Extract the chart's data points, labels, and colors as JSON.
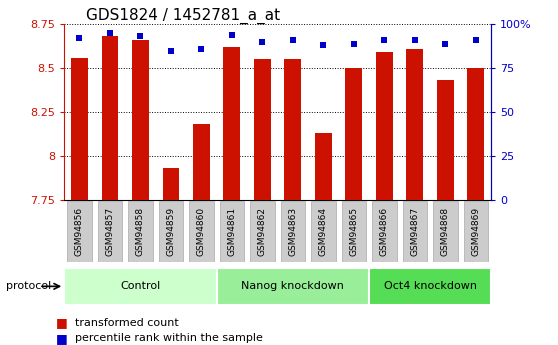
{
  "title": "GDS1824 / 1452781_a_at",
  "samples": [
    "GSM94856",
    "GSM94857",
    "GSM94858",
    "GSM94859",
    "GSM94860",
    "GSM94861",
    "GSM94862",
    "GSM94863",
    "GSM94864",
    "GSM94865",
    "GSM94866",
    "GSM94867",
    "GSM94868",
    "GSM94869"
  ],
  "bar_values": [
    8.56,
    8.68,
    8.66,
    7.93,
    8.18,
    8.62,
    8.55,
    8.55,
    8.13,
    8.5,
    8.59,
    8.61,
    8.43,
    8.5
  ],
  "percentile_values": [
    92,
    95,
    93,
    85,
    86,
    94,
    90,
    91,
    88,
    89,
    91,
    91,
    89,
    91
  ],
  "groups": [
    {
      "label": "Control",
      "start": 0,
      "end": 5,
      "color": "#ccffcc"
    },
    {
      "label": "Nanog knockdown",
      "start": 5,
      "end": 10,
      "color": "#99ee99"
    },
    {
      "label": "Oct4 knockdown",
      "start": 10,
      "end": 14,
      "color": "#55dd55"
    }
  ],
  "bar_color": "#cc1100",
  "percentile_color": "#0000cc",
  "ylim_left": [
    7.75,
    8.75
  ],
  "ylim_right": [
    0,
    100
  ],
  "yticks_left": [
    7.75,
    8.0,
    8.25,
    8.5,
    8.75
  ],
  "ytick_labels_left": [
    "7.75",
    "8",
    "8.25",
    "8.5",
    "8.75"
  ],
  "yticks_right": [
    0,
    25,
    50,
    75,
    100
  ],
  "ytick_labels_right": [
    "0",
    "25",
    "50",
    "75",
    "100%"
  ],
  "bar_width": 0.55,
  "ybase": 7.75,
  "title_fontsize": 11,
  "tick_label_color_left": "#cc1100",
  "tick_label_color_right": "#0000cc",
  "legend_items": [
    {
      "label": "transformed count",
      "color": "#cc1100"
    },
    {
      "label": "percentile rank within the sample",
      "color": "#0000cc"
    }
  ]
}
